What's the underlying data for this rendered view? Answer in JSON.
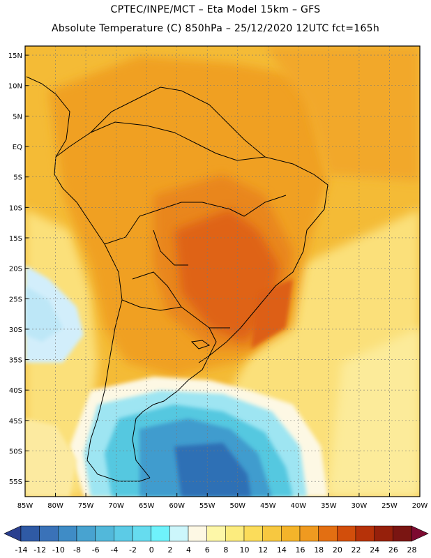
{
  "header": {
    "line1": "CPTEC/INPE/MCT –   Eta Model 15km – GFS",
    "line2": "Absolute Temperature (C) 850hPa – 25/12/2020 12UTC fct=165h"
  },
  "map": {
    "lat_labels": [
      "15N",
      "10N",
      "5N",
      "EQ",
      "5S",
      "10S",
      "15S",
      "20S",
      "25S",
      "30S",
      "35S",
      "40S",
      "45S",
      "50S",
      "55S"
    ],
    "lat_values": [
      15,
      10,
      5,
      0,
      -5,
      -10,
      -15,
      -20,
      -25,
      -30,
      -35,
      -40,
      -45,
      -50,
      -55
    ],
    "lon_labels": [
      "85W",
      "80W",
      "75W",
      "70W",
      "65W",
      "60W",
      "55W",
      "50W",
      "45W",
      "40W",
      "35W",
      "30W",
      "25W",
      "20W"
    ],
    "lon_values": [
      -85,
      -80,
      -75,
      -70,
      -65,
      -60,
      -55,
      -50,
      -45,
      -40,
      -35,
      -30,
      -25,
      -20
    ],
    "extent": {
      "lon_min": -85,
      "lon_max": -20,
      "lat_min": -57.5,
      "lat_max": 16.5
    },
    "variable": "Absolute Temperature (C) 850hPa"
  },
  "colorbar": {
    "labels": [
      "-14",
      "-12",
      "-10",
      "-8",
      "-6",
      "-4",
      "-2",
      "0",
      "2",
      "4",
      "6",
      "8",
      "10",
      "12",
      "14",
      "16",
      "18",
      "20",
      "22",
      "24",
      "26",
      "28"
    ],
    "colors": [
      "#2a3f8f",
      "#2f5aa5",
      "#3a72b8",
      "#3f8cc6",
      "#48a3d0",
      "#52b8da",
      "#5ccbe6",
      "#66dcef",
      "#6ff2fb",
      "#ccf6fb",
      "#fdf8e4",
      "#fdf7a8",
      "#fcec7e",
      "#fbdc5a",
      "#f7c840",
      "#f4b42a",
      "#ef9a20",
      "#e36f12",
      "#d24e0b",
      "#b63209",
      "#96200b",
      "#7a1512",
      "#7d0a30"
    ]
  },
  "colors": {
    "ocean_warm": "#f5c642",
    "land_warm": "#f2a621",
    "land_hot": "#e8841a",
    "core_hot": "#df6413",
    "sea_cool": "#fbe783",
    "cold_deep": "#3c6fb0"
  }
}
